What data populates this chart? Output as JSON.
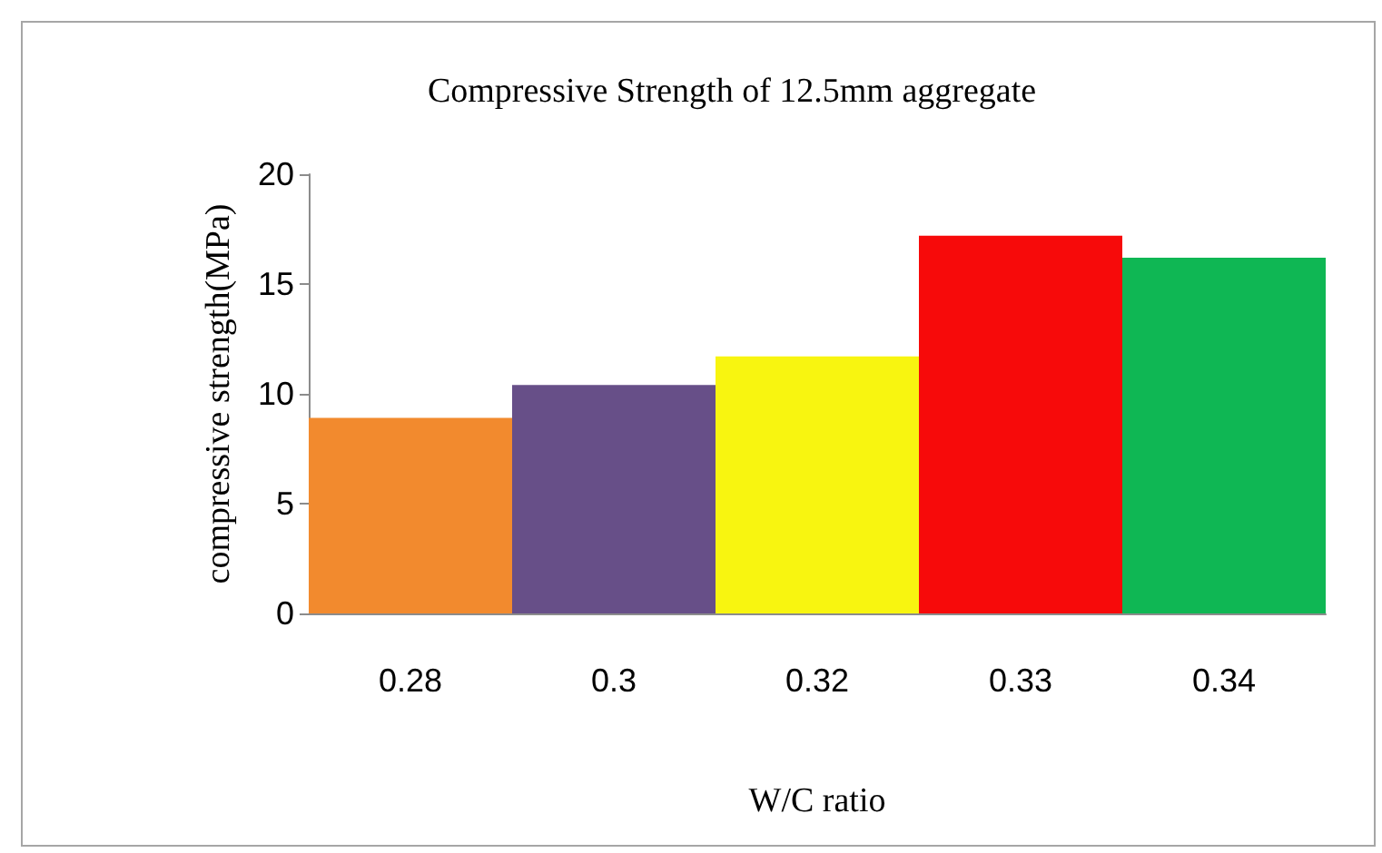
{
  "chart_data": {
    "type": "bar",
    "title": "Compressive Strength of 12.5mm aggregate",
    "xlabel": "W/C ratio",
    "ylabel": "compressive strength(MPa)",
    "categories": [
      "0.28",
      "0.3",
      "0.32",
      "0.33",
      "0.34"
    ],
    "values": [
      8.9,
      10.4,
      11.7,
      17.2,
      16.2
    ],
    "colors": [
      "#f28a2e",
      "#674f88",
      "#f8f510",
      "#f70a0a",
      "#0fb754"
    ],
    "ylim": [
      0,
      20
    ],
    "yticks": [
      0,
      5,
      10,
      15,
      20
    ],
    "grid": false
  }
}
